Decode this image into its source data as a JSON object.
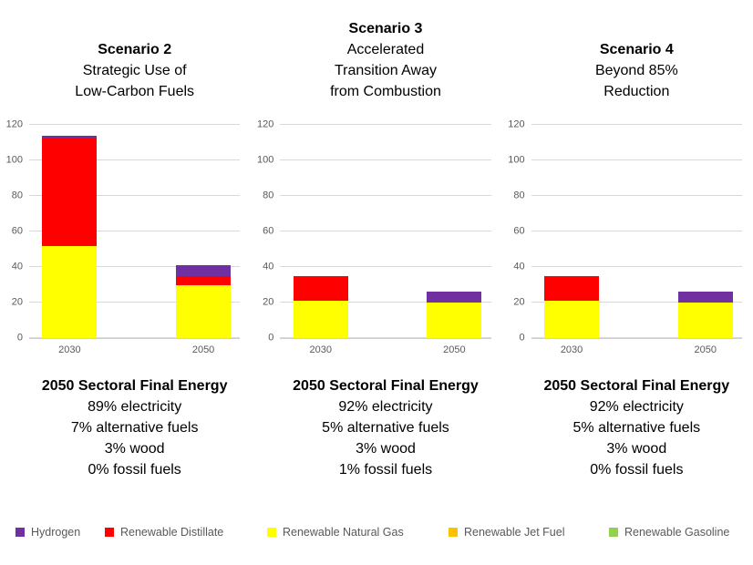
{
  "colors": {
    "grid": "#d9d9d9",
    "axis_text": "#595959",
    "legend_text": "#595959"
  },
  "chart_data": [
    {
      "type": "bar",
      "stacked": true,
      "title": "Scenario 2",
      "subtitle_lines": [
        "Strategic Use of",
        "Low-Carbon Fuels"
      ],
      "categories": [
        "2030",
        "2050"
      ],
      "series": [
        {
          "name": "Renewable Natural Gas",
          "color": "#FFFF00",
          "values": [
            52,
            30
          ]
        },
        {
          "name": "Renewable Distillate",
          "color": "#FF0000",
          "values": [
            60.5,
            5
          ]
        },
        {
          "name": "Hydrogen",
          "color": "#7030A0",
          "values": [
            1.5,
            6
          ]
        }
      ],
      "ylim": [
        0,
        120
      ],
      "yticks": [
        0,
        20,
        40,
        60,
        80,
        100,
        120
      ],
      "grid": true,
      "caption_title": "2050 Sectoral Final Energy",
      "caption_lines": [
        "89% electricity",
        "7% alternative fuels",
        "3% wood",
        "0% fossil fuels"
      ]
    },
    {
      "type": "bar",
      "stacked": true,
      "title": "Scenario 3",
      "subtitle_lines": [
        "Accelerated",
        "Transition Away",
        "from Combustion"
      ],
      "categories": [
        "2030",
        "2050"
      ],
      "series": [
        {
          "name": "Renewable Natural Gas",
          "color": "#FFFF00",
          "values": [
            21,
            20
          ]
        },
        {
          "name": "Renewable Distillate",
          "color": "#FF0000",
          "values": [
            13.5,
            0
          ]
        },
        {
          "name": "Hydrogen",
          "color": "#7030A0",
          "values": [
            0.5,
            6
          ]
        }
      ],
      "ylim": [
        0,
        120
      ],
      "yticks": [
        0,
        20,
        40,
        60,
        80,
        100,
        120
      ],
      "grid": true,
      "caption_title": "2050 Sectoral Final Energy",
      "caption_lines": [
        "92% electricity",
        "5% alternative fuels",
        "3% wood",
        "1% fossil fuels"
      ]
    },
    {
      "type": "bar",
      "stacked": true,
      "title": "Scenario 4",
      "subtitle_lines": [
        "Beyond 85%",
        "Reduction"
      ],
      "categories": [
        "2030",
        "2050"
      ],
      "series": [
        {
          "name": "Renewable Natural Gas",
          "color": "#FFFF00",
          "values": [
            21,
            20
          ]
        },
        {
          "name": "Renewable Distillate",
          "color": "#FF0000",
          "values": [
            13.5,
            0
          ]
        },
        {
          "name": "Hydrogen",
          "color": "#7030A0",
          "values": [
            0.5,
            6
          ]
        }
      ],
      "ylim": [
        0,
        120
      ],
      "yticks": [
        0,
        20,
        40,
        60,
        80,
        100,
        120
      ],
      "grid": true,
      "caption_title": "2050 Sectoral Final Energy",
      "caption_lines": [
        "92% electricity",
        "5% alternative fuels",
        "3% wood",
        "0% fossil fuels"
      ]
    }
  ],
  "legend": {
    "position": "bottom",
    "items": [
      {
        "label": "Hydrogen",
        "color": "#7030A0"
      },
      {
        "label": "Renewable Distillate",
        "color": "#FF0000"
      },
      {
        "label": "Renewable Natural Gas",
        "color": "#FFFF00"
      },
      {
        "label": "Renewable Jet Fuel",
        "color": "#FFC000"
      },
      {
        "label": "Renewable Gasoline",
        "color": "#92D050"
      }
    ]
  }
}
